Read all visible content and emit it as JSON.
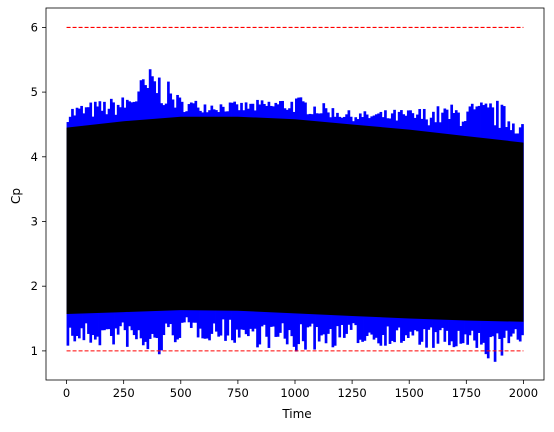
{
  "chart_data": {
    "type": "line",
    "title": "",
    "xlabel": "Time",
    "ylabel": "Cp",
    "xlim": [
      -90,
      2090
    ],
    "ylim": [
      0.55,
      6.3
    ],
    "x_ticks": [
      0,
      250,
      500,
      750,
      1000,
      1250,
      1500,
      1750,
      2000
    ],
    "y_ticks": [
      1,
      2,
      3,
      4,
      5,
      6
    ],
    "grid": false,
    "legend": "none",
    "colors": {
      "envelope": "#0000ff",
      "core": "#000000",
      "limits": "#ff0000",
      "axes": "#000000"
    },
    "series": [
      {
        "role": "upper-limit",
        "style": "dashed",
        "color": "#ff0000",
        "x": [
          0,
          2000
        ],
        "y": [
          6.0,
          6.0
        ]
      },
      {
        "role": "lower-limit",
        "style": "dashed",
        "color": "#ff0000",
        "x": [
          0,
          2000
        ],
        "y": [
          1.0,
          1.0
        ]
      },
      {
        "role": "blue-envelope",
        "color": "#0000ff",
        "x": [
          0,
          250,
          375,
          500,
          750,
          1000,
          1250,
          1500,
          1750,
          1875,
          2000
        ],
        "y_max": [
          4.8,
          4.95,
          5.45,
          4.9,
          4.85,
          4.95,
          4.7,
          4.75,
          4.85,
          4.9,
          4.55
        ],
        "y_min": [
          1.05,
          1.05,
          0.8,
          1.2,
          1.1,
          0.95,
          1.1,
          1.05,
          0.95,
          0.8,
          1.15
        ]
      },
      {
        "role": "black-core",
        "color": "#000000",
        "x": [
          0,
          250,
          500,
          750,
          1000,
          1250,
          1500,
          1750,
          2000
        ],
        "y_max": [
          4.45,
          4.55,
          4.62,
          4.62,
          4.58,
          4.5,
          4.42,
          4.32,
          4.22
        ],
        "y_min": [
          1.57,
          1.6,
          1.63,
          1.62,
          1.58,
          1.54,
          1.5,
          1.47,
          1.45
        ]
      }
    ]
  }
}
